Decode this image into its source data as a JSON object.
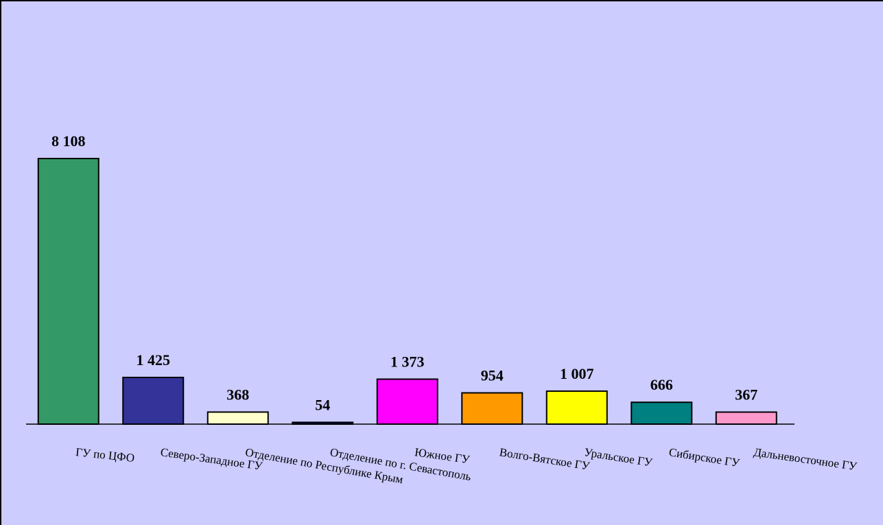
{
  "chart_data": {
    "type": "bar",
    "categories": [
      "ГУ по ЦФО",
      "Северо-Западное ГУ",
      "Отделение по Республике Крым",
      "Отделение по г. Севастополь",
      "Южное ГУ",
      "Волго-Вятское ГУ",
      "Уральское ГУ",
      "Сибирское ГУ",
      "Дальневосточное ГУ"
    ],
    "values": [
      8108,
      1425,
      368,
      54,
      1373,
      954,
      1007,
      666,
      367
    ],
    "value_labels": [
      "8 108",
      "1 425",
      "368",
      "54",
      "1 373",
      "954",
      "1 007",
      "666",
      "367"
    ],
    "bar_colors": [
      "#339966",
      "#333399",
      "#ffffcc",
      "#000080",
      "#ff00ff",
      "#ff9900",
      "#ffff00",
      "#008080",
      "#ff99cc"
    ],
    "background_color": "#ccccff",
    "ylim": [
      0,
      8108
    ],
    "grid": false,
    "legend": "none"
  }
}
